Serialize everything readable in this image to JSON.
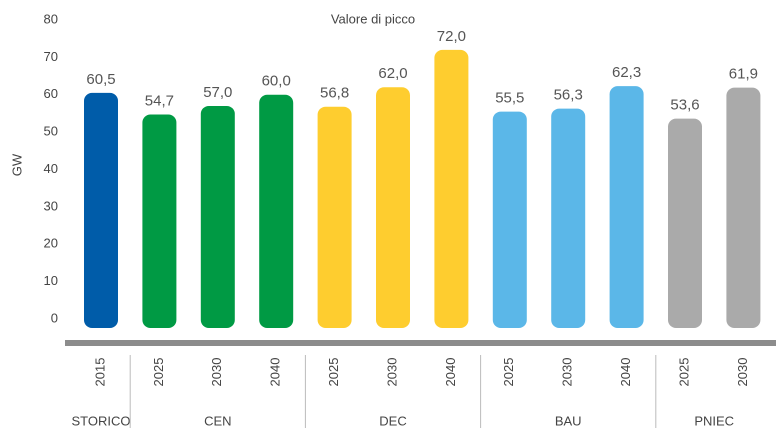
{
  "chart_data": {
    "type": "bar",
    "title": "Valore di picco",
    "y_label": "GW",
    "ylim": [
      0,
      80
    ],
    "yticks": [
      0,
      10,
      20,
      30,
      40,
      50,
      60,
      70,
      80
    ],
    "series": [
      {
        "name": "STORICO",
        "color": "#005ca9",
        "categories": [
          "2015"
        ],
        "values": [
          60.5
        ],
        "value_labels": [
          "60,5"
        ]
      },
      {
        "name": "CEN",
        "color": "#009a44",
        "categories": [
          "2025",
          "2030",
          "2040"
        ],
        "values": [
          54.7,
          57.0,
          60.0
        ],
        "value_labels": [
          "54,7",
          "57,0",
          "60,0"
        ]
      },
      {
        "name": "DEC",
        "color": "#fecd2f",
        "categories": [
          "2025",
          "2030",
          "2040"
        ],
        "values": [
          56.8,
          62.0,
          72.0
        ],
        "value_labels": [
          "56,8",
          "62,0",
          "72,0"
        ]
      },
      {
        "name": "BAU",
        "color": "#5bb7e8",
        "categories": [
          "2025",
          "2030",
          "2040"
        ],
        "values": [
          55.5,
          56.3,
          62.3
        ],
        "value_labels": [
          "55,5",
          "56,3",
          "62,3"
        ]
      },
      {
        "name": "PNIEC",
        "color": "#aaaaaa",
        "categories": [
          "2025",
          "2030"
        ],
        "values": [
          53.6,
          61.9
        ],
        "value_labels": [
          "53,6",
          "61,9"
        ]
      }
    ]
  }
}
